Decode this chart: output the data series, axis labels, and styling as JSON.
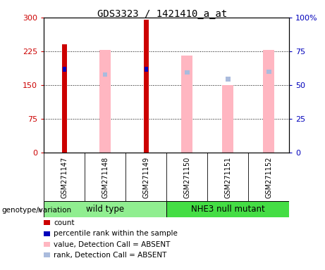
{
  "title": "GDS3323 / 1421410_a_at",
  "samples": [
    "GSM271147",
    "GSM271148",
    "GSM271149",
    "GSM271150",
    "GSM271151",
    "GSM271152"
  ],
  "group_wt_label": "wild type",
  "group_nhe_label": "NHE3 null mutant",
  "group_wt_color": "#90EE90",
  "group_nhe_color": "#44DD44",
  "count_values": [
    240,
    0,
    295,
    0,
    0,
    0
  ],
  "rank_values": [
    185,
    0,
    185,
    0,
    0,
    0
  ],
  "absent_value_heights": [
    0,
    228,
    0,
    215,
    150,
    228
  ],
  "absent_rank_heights": [
    0,
    173,
    0,
    178,
    163,
    180
  ],
  "ylim_left": [
    0,
    300
  ],
  "ylim_right": [
    0,
    100
  ],
  "yticks_left": [
    0,
    75,
    150,
    225,
    300
  ],
  "yticks_right": [
    0,
    25,
    50,
    75,
    100
  ],
  "color_count": "#CC0000",
  "color_rank": "#0000BB",
  "color_absent_value": "#FFB6C1",
  "color_absent_rank": "#AABBDD",
  "gridline_values": [
    75,
    150,
    225
  ],
  "group_label_text": "genotype/variation",
  "legend": [
    {
      "color": "#CC0000",
      "label": "count"
    },
    {
      "color": "#0000BB",
      "label": "percentile rank within the sample"
    },
    {
      "color": "#FFB6C1",
      "label": "value, Detection Call = ABSENT"
    },
    {
      "color": "#AABBDD",
      "label": "rank, Detection Call = ABSENT"
    }
  ]
}
